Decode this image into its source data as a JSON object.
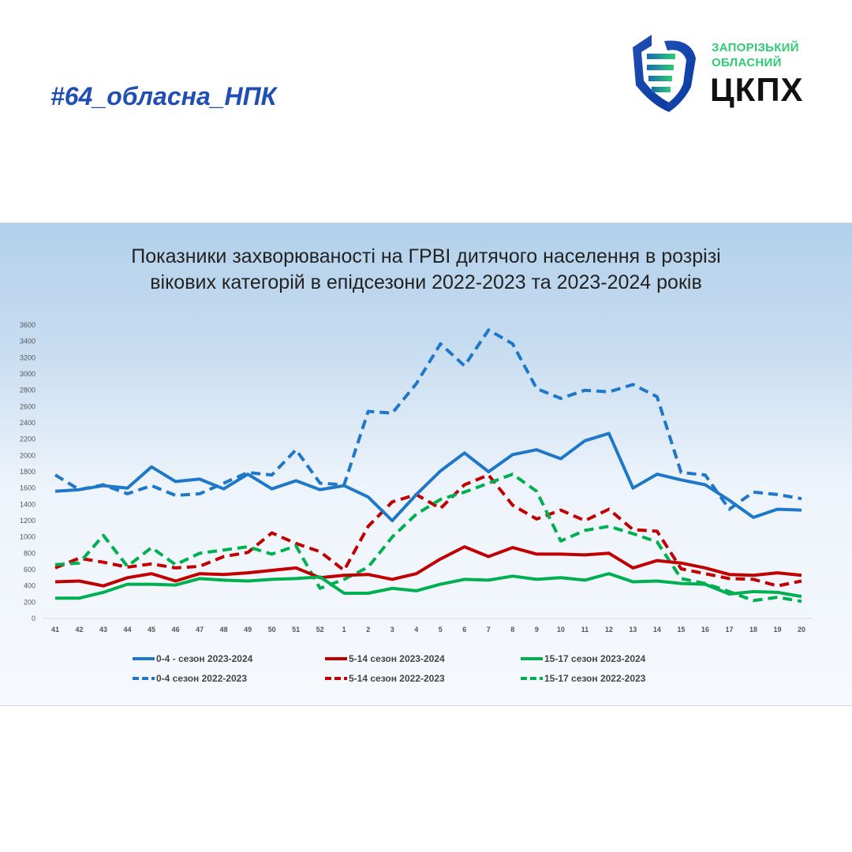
{
  "header": {
    "hashtag": "#64_обласна_НПК"
  },
  "logo": {
    "line1": "ЗАПОРІЗЬКИЙ",
    "line2": "ОБЛАСНИЙ",
    "main": "ЦКПХ"
  },
  "chart_data": {
    "type": "line",
    "title_line1": "Показники захворюваності на ГРВІ дитячого населення в розрізі",
    "title_line2": "вікових категорій в епідсезони 2022-2023 та 2023-2024 років",
    "xlabel": "",
    "ylabel": "",
    "ylim": [
      0,
      3600
    ],
    "yticks": [
      0,
      200,
      400,
      600,
      800,
      1000,
      1200,
      1400,
      1600,
      1800,
      2000,
      2200,
      2400,
      2600,
      2800,
      3000,
      3200,
      3400,
      3600
    ],
    "categories": [
      "41",
      "42",
      "43",
      "44",
      "45",
      "46",
      "47",
      "48",
      "49",
      "50",
      "51",
      "52",
      "1",
      "2",
      "3",
      "4",
      "5",
      "6",
      "7",
      "8",
      "9",
      "10",
      "11",
      "12",
      "13",
      "14",
      "15",
      "16",
      "17",
      "18",
      "19",
      "20"
    ],
    "legend_position": "bottom",
    "series": [
      {
        "name": "0-4 - сезон 2023-2024",
        "color": "#1f77c8",
        "dashed": false,
        "values": [
          1560,
          1580,
          1630,
          1600,
          1860,
          1680,
          1710,
          1590,
          1770,
          1590,
          1690,
          1580,
          1630,
          1490,
          1200,
          1520,
          1810,
          2030,
          1800,
          2010,
          2070,
          1960,
          2180,
          2270,
          1600,
          1770,
          1700,
          1640,
          1450,
          1240,
          1340,
          1330
        ]
      },
      {
        "name": "5-14 сезон 2023-2024",
        "color": "#c00000",
        "dashed": false,
        "values": [
          450,
          460,
          400,
          500,
          550,
          460,
          550,
          540,
          560,
          590,
          620,
          500,
          530,
          540,
          480,
          550,
          730,
          880,
          760,
          870,
          790,
          790,
          780,
          800,
          620,
          710,
          680,
          620,
          540,
          530,
          560,
          530
        ]
      },
      {
        "name": "15-17 сезон 2023-2024",
        "color": "#00b050",
        "dashed": false,
        "values": [
          250,
          250,
          320,
          420,
          420,
          410,
          490,
          470,
          460,
          480,
          490,
          510,
          310,
          310,
          370,
          340,
          420,
          480,
          470,
          520,
          480,
          500,
          470,
          550,
          450,
          460,
          430,
          420,
          300,
          330,
          320,
          270
        ]
      },
      {
        "name": "0-4  сезон 2022-2023",
        "color": "#1f77c8",
        "dashed": true,
        "values": [
          1760,
          1580,
          1640,
          1530,
          1630,
          1510,
          1530,
          1660,
          1790,
          1760,
          2070,
          1660,
          1640,
          2540,
          2520,
          2880,
          3370,
          3100,
          3540,
          3370,
          2820,
          2700,
          2800,
          2780,
          2870,
          2720,
          1790,
          1760,
          1340,
          1550,
          1520,
          1470
        ]
      },
      {
        "name": "5-14  сезон 2022-2023",
        "color": "#c00000",
        "dashed": true,
        "values": [
          620,
          740,
          690,
          630,
          670,
          620,
          640,
          760,
          810,
          1050,
          920,
          820,
          590,
          1130,
          1430,
          1520,
          1350,
          1640,
          1760,
          1390,
          1220,
          1330,
          1200,
          1340,
          1090,
          1070,
          610,
          550,
          490,
          480,
          400,
          460
        ]
      },
      {
        "name": "15-17 сезон 2022-2023",
        "color": "#00b050",
        "dashed": true,
        "values": [
          660,
          680,
          1020,
          640,
          870,
          660,
          800,
          840,
          880,
          790,
          890,
          370,
          480,
          630,
          1000,
          1280,
          1460,
          1550,
          1660,
          1770,
          1560,
          950,
          1080,
          1130,
          1040,
          940,
          490,
          430,
          330,
          220,
          260,
          210
        ]
      }
    ]
  }
}
